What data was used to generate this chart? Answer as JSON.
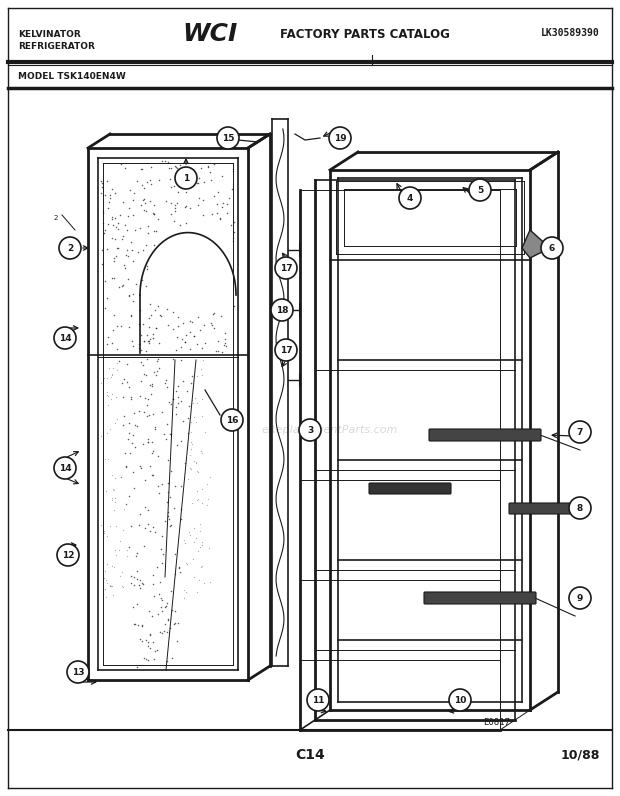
{
  "title_left1": "KELVINATOR",
  "title_left2": "REFRIGERATOR",
  "title_center": "FACTORY PARTS CATALOG",
  "title_right": "LK30589390",
  "model": "MODEL TSK140EN4W",
  "page_code": "C14",
  "date_code": "10/88",
  "diagram_code": "E0817",
  "bg_color": "#ffffff",
  "line_color": "#1a1a1a"
}
